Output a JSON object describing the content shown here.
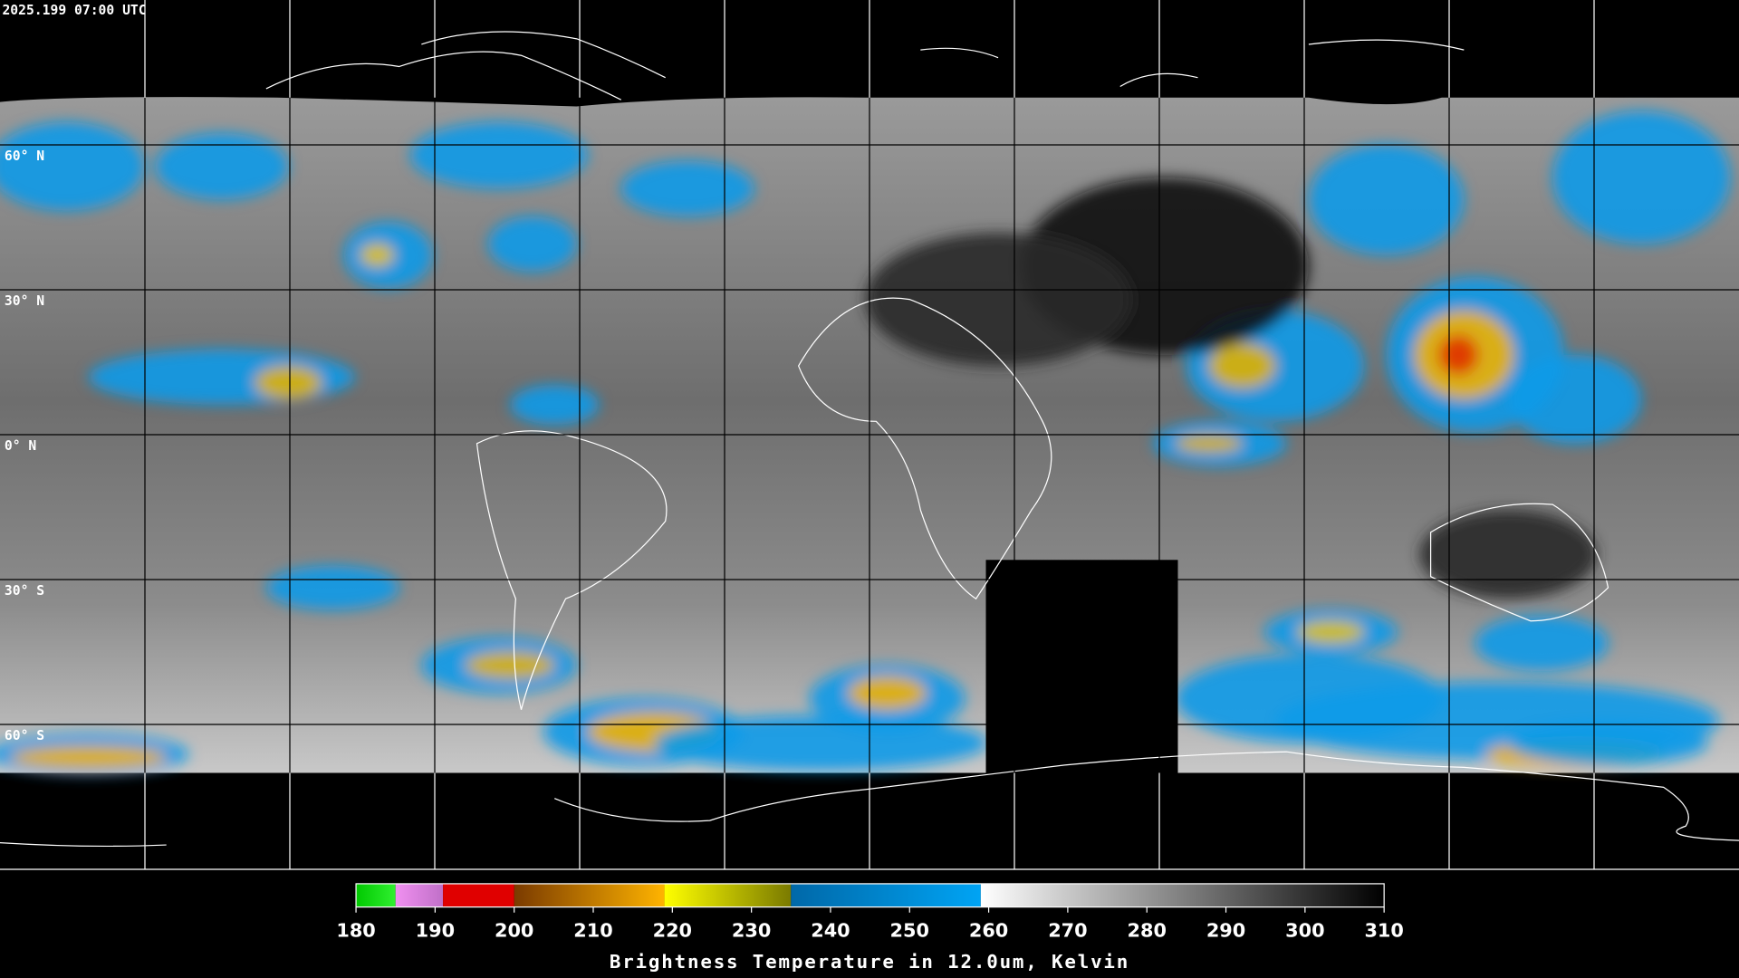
{
  "header": {
    "timestamp": "2025.199 07:00 UTC"
  },
  "map": {
    "lat_labels": [
      "60° N",
      "30° N",
      "0° N",
      "30° S",
      "60° S"
    ]
  },
  "colorbar": {
    "range": [
      180,
      310
    ],
    "ticks": [
      180,
      190,
      200,
      210,
      220,
      230,
      240,
      250,
      260,
      270,
      280,
      290,
      300,
      310
    ],
    "title": "Brightness Temperature in 12.0um, Kelvin",
    "segments": [
      {
        "from": 180,
        "to": 185,
        "colors": [
          "#00c800",
          "#30f030"
        ]
      },
      {
        "from": 185,
        "to": 191,
        "colors": [
          "#f090f0",
          "#c070c8"
        ]
      },
      {
        "from": 191,
        "to": 200,
        "colors": [
          "#e00000",
          "#e00000"
        ]
      },
      {
        "from": 200,
        "to": 219,
        "colors": [
          "#7a3a00",
          "#ffb400"
        ]
      },
      {
        "from": 219,
        "to": 235,
        "colors": [
          "#ffff00",
          "#7a7a00"
        ]
      },
      {
        "from": 235,
        "to": 259,
        "colors": [
          "#0068a8",
          "#00a4f4"
        ]
      },
      {
        "from": 259,
        "to": 310,
        "colors": [
          "#ffffff",
          "#000000"
        ]
      }
    ]
  }
}
